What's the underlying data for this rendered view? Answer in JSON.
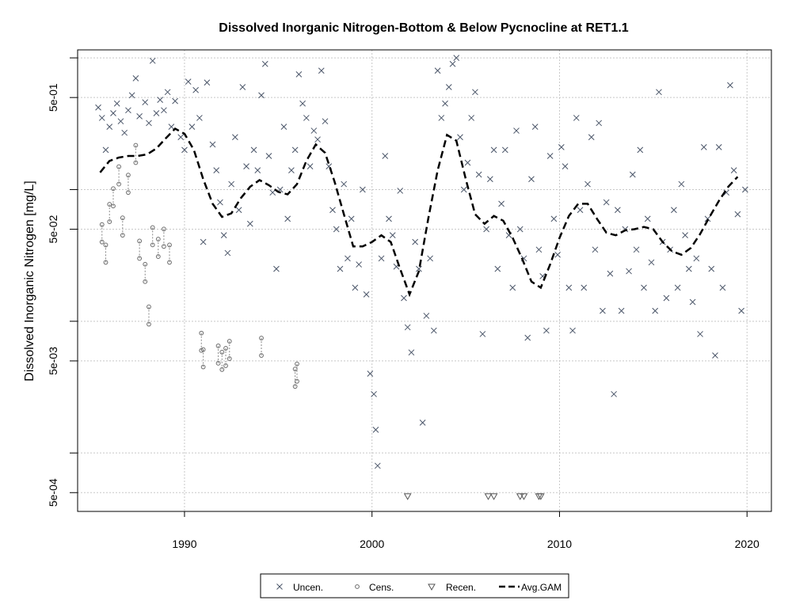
{
  "chart_data": {
    "type": "scatter",
    "title": "Dissolved Inorganic Nitrogen-Bottom & Below Pycnocline at RET1.1",
    "xlabel": "",
    "ylabel": "Dissolved Inorganic Nitrogen [mg/L]",
    "y_scale": "log",
    "xlim": [
      1984.3,
      2021.3
    ],
    "ylim": [
      0.00036,
      1.15
    ],
    "grid": true,
    "x_ticks": [
      1990,
      2000,
      2010,
      2020
    ],
    "x_tick_labels": [
      "1990",
      "2000",
      "2010",
      "2020"
    ],
    "y_ticks": [
      0.0005,
      0.005,
      0.05,
      0.5
    ],
    "y_tick_labels": [
      "5e-04",
      "5e-03",
      "5e-02",
      "5e-01"
    ],
    "y_gridlines": [
      0.001,
      0.01,
      0.1,
      1
    ],
    "legend": {
      "position": "bottom",
      "entries": [
        {
          "label": "Uncen.",
          "marker": "x-icon"
        },
        {
          "label": "Cens.",
          "marker": "circle-icon"
        },
        {
          "label": "Recen.",
          "marker": "triangle-down-icon"
        },
        {
          "label": "Avg.GAM",
          "marker": "dashed-line-icon"
        }
      ]
    },
    "colors": {
      "points": "#4a5568",
      "gam": "#000000",
      "grid": "#c8c8c8"
    },
    "series": [
      {
        "name": "Uncen.",
        "marker": "x",
        "points": [
          [
            1985.4,
            0.42
          ],
          [
            1985.6,
            0.35
          ],
          [
            1985.8,
            0.2
          ],
          [
            1986.0,
            0.3
          ],
          [
            1986.2,
            0.38
          ],
          [
            1986.4,
            0.45
          ],
          [
            1986.6,
            0.33
          ],
          [
            1986.8,
            0.27
          ],
          [
            1987.0,
            0.4
          ],
          [
            1987.2,
            0.52
          ],
          [
            1987.4,
            0.7
          ],
          [
            1987.6,
            0.36
          ],
          [
            1987.9,
            0.46
          ],
          [
            1988.1,
            0.32
          ],
          [
            1988.3,
            0.95
          ],
          [
            1988.5,
            0.38
          ],
          [
            1988.7,
            0.48
          ],
          [
            1988.9,
            0.4
          ],
          [
            1989.1,
            0.55
          ],
          [
            1989.3,
            0.3
          ],
          [
            1989.5,
            0.47
          ],
          [
            1989.8,
            0.25
          ],
          [
            1990.0,
            0.2
          ],
          [
            1990.2,
            0.66
          ],
          [
            1990.4,
            0.3
          ],
          [
            1990.6,
            0.57
          ],
          [
            1990.8,
            0.35
          ],
          [
            1991.0,
            0.04
          ],
          [
            1991.2,
            0.65
          ],
          [
            1991.5,
            0.22
          ],
          [
            1991.7,
            0.14
          ],
          [
            1991.9,
            0.08
          ],
          [
            1992.1,
            0.045
          ],
          [
            1992.3,
            0.033
          ],
          [
            1992.5,
            0.11
          ],
          [
            1992.7,
            0.25
          ],
          [
            1992.9,
            0.07
          ],
          [
            1993.1,
            0.6
          ],
          [
            1993.3,
            0.15
          ],
          [
            1993.5,
            0.055
          ],
          [
            1993.7,
            0.2
          ],
          [
            1993.9,
            0.14
          ],
          [
            1994.1,
            0.52
          ],
          [
            1994.3,
            0.9
          ],
          [
            1994.5,
            0.18
          ],
          [
            1994.7,
            0.095
          ],
          [
            1994.9,
            0.025
          ],
          [
            1995.1,
            0.1
          ],
          [
            1995.3,
            0.3
          ],
          [
            1995.5,
            0.06
          ],
          [
            1995.7,
            0.14
          ],
          [
            1995.9,
            0.2
          ],
          [
            1996.1,
            0.75
          ],
          [
            1996.3,
            0.45
          ],
          [
            1996.5,
            0.35
          ],
          [
            1996.7,
            0.15
          ],
          [
            1996.9,
            0.28
          ],
          [
            1997.1,
            0.24
          ],
          [
            1997.3,
            0.8
          ],
          [
            1997.5,
            0.33
          ],
          [
            1997.7,
            0.15
          ],
          [
            1997.9,
            0.07
          ],
          [
            1998.1,
            0.05
          ],
          [
            1998.3,
            0.025
          ],
          [
            1998.5,
            0.11
          ],
          [
            1998.7,
            0.03
          ],
          [
            1998.9,
            0.06
          ],
          [
            1999.1,
            0.018
          ],
          [
            1999.3,
            0.027
          ],
          [
            1999.5,
            0.1
          ],
          [
            1999.7,
            0.016
          ],
          [
            1999.9,
            0.004
          ],
          [
            2000.1,
            0.0028
          ],
          [
            2000.2,
            0.0015
          ],
          [
            2000.3,
            0.0008
          ],
          [
            2000.5,
            0.03
          ],
          [
            2000.7,
            0.18
          ],
          [
            2000.9,
            0.06
          ],
          [
            2001.1,
            0.045
          ],
          [
            2001.3,
            0.026
          ],
          [
            2001.5,
            0.098
          ],
          [
            2001.7,
            0.015
          ],
          [
            2001.9,
            0.009
          ],
          [
            2002.1,
            0.0058
          ],
          [
            2002.3,
            0.04
          ],
          [
            2002.5,
            0.025
          ],
          [
            2002.7,
            0.0017
          ],
          [
            2002.9,
            0.011
          ],
          [
            2003.1,
            0.03
          ],
          [
            2003.3,
            0.0085
          ],
          [
            2003.5,
            0.8
          ],
          [
            2003.7,
            0.35
          ],
          [
            2003.9,
            0.45
          ],
          [
            2004.1,
            0.6
          ],
          [
            2004.3,
            0.9
          ],
          [
            2004.5,
            1.0
          ],
          [
            2004.7,
            0.25
          ],
          [
            2004.9,
            0.1
          ],
          [
            2005.1,
            0.16
          ],
          [
            2005.3,
            0.35
          ],
          [
            2005.5,
            0.55
          ],
          [
            2005.7,
            0.13
          ],
          [
            2005.9,
            0.008
          ],
          [
            2006.1,
            0.05
          ],
          [
            2006.3,
            0.12
          ],
          [
            2006.5,
            0.2
          ],
          [
            2006.7,
            0.025
          ],
          [
            2006.9,
            0.078
          ],
          [
            2007.1,
            0.2
          ],
          [
            2007.3,
            0.045
          ],
          [
            2007.5,
            0.018
          ],
          [
            2007.7,
            0.28
          ],
          [
            2007.9,
            0.05
          ],
          [
            2008.1,
            0.03
          ],
          [
            2008.3,
            0.0075
          ],
          [
            2008.5,
            0.12
          ],
          [
            2008.7,
            0.3
          ],
          [
            2008.9,
            0.035
          ],
          [
            2009.1,
            0.022
          ],
          [
            2009.3,
            0.0085
          ],
          [
            2009.5,
            0.18
          ],
          [
            2009.7,
            0.06
          ],
          [
            2009.9,
            0.032
          ],
          [
            2010.1,
            0.21
          ],
          [
            2010.3,
            0.15
          ],
          [
            2010.5,
            0.018
          ],
          [
            2010.7,
            0.0085
          ],
          [
            2010.9,
            0.35
          ],
          [
            2011.1,
            0.07
          ],
          [
            2011.3,
            0.018
          ],
          [
            2011.5,
            0.11
          ],
          [
            2011.7,
            0.25
          ],
          [
            2011.9,
            0.035
          ],
          [
            2012.1,
            0.32
          ],
          [
            2012.3,
            0.012
          ],
          [
            2012.5,
            0.08
          ],
          [
            2012.7,
            0.023
          ],
          [
            2012.9,
            0.0028
          ],
          [
            2013.1,
            0.07
          ],
          [
            2013.3,
            0.012
          ],
          [
            2013.5,
            0.05
          ],
          [
            2013.7,
            0.024
          ],
          [
            2013.9,
            0.13
          ],
          [
            2014.1,
            0.035
          ],
          [
            2014.3,
            0.2
          ],
          [
            2014.5,
            0.018
          ],
          [
            2014.7,
            0.06
          ],
          [
            2014.9,
            0.028
          ],
          [
            2015.1,
            0.012
          ],
          [
            2015.3,
            0.55
          ],
          [
            2015.5,
            0.04
          ],
          [
            2015.7,
            0.015
          ],
          [
            2015.9,
            0.035
          ],
          [
            2016.1,
            0.07
          ],
          [
            2016.3,
            0.018
          ],
          [
            2016.5,
            0.11
          ],
          [
            2016.7,
            0.045
          ],
          [
            2016.9,
            0.025
          ],
          [
            2017.1,
            0.014
          ],
          [
            2017.3,
            0.03
          ],
          [
            2017.5,
            0.008
          ],
          [
            2017.7,
            0.21
          ],
          [
            2017.9,
            0.06
          ],
          [
            2018.1,
            0.025
          ],
          [
            2018.3,
            0.0055
          ],
          [
            2018.5,
            0.21
          ],
          [
            2018.7,
            0.018
          ],
          [
            2018.9,
            0.095
          ],
          [
            2019.1,
            0.62
          ],
          [
            2019.3,
            0.14
          ],
          [
            2019.5,
            0.065
          ],
          [
            2019.7,
            0.012
          ],
          [
            2019.9,
            0.1
          ]
        ]
      },
      {
        "name": "Cens.",
        "marker": "circle",
        "points": [
          [
            1985.6,
            0.04
          ],
          [
            1985.8,
            0.028
          ],
          [
            1986.0,
            0.057
          ],
          [
            1986.2,
            0.075
          ],
          [
            1986.5,
            0.11
          ],
          [
            1986.7,
            0.045
          ],
          [
            1987.0,
            0.095
          ],
          [
            1987.4,
            0.16
          ],
          [
            1987.6,
            0.03
          ],
          [
            1987.9,
            0.02
          ],
          [
            1988.1,
            0.0095
          ],
          [
            1988.3,
            0.038
          ],
          [
            1988.6,
            0.031
          ],
          [
            1988.9,
            0.037
          ],
          [
            1989.2,
            0.028
          ],
          [
            1990.9,
            0.006
          ],
          [
            1991.0,
            0.0045
          ],
          [
            1991.8,
            0.0048
          ],
          [
            1992.0,
            0.0043
          ],
          [
            1992.2,
            0.0046
          ],
          [
            1992.4,
            0.0052
          ],
          [
            1994.1,
            0.0055
          ],
          [
            1995.9,
            0.0032
          ],
          [
            1996.0,
            0.0035
          ]
        ]
      },
      {
        "name": "Recen.",
        "marker": "triangle-down",
        "points": [
          [
            2001.9,
            0.00047
          ],
          [
            2006.2,
            0.00047
          ],
          [
            2006.5,
            0.00047
          ],
          [
            2007.9,
            0.00047
          ],
          [
            2008.1,
            0.00047
          ],
          [
            2008.9,
            0.00047
          ],
          [
            2009.0,
            0.00047
          ]
        ]
      },
      {
        "name": "Avg.GAM",
        "line_style": "dashed",
        "points": [
          [
            1985.5,
            0.135
          ],
          [
            1986.0,
            0.165
          ],
          [
            1986.5,
            0.175
          ],
          [
            1987.0,
            0.18
          ],
          [
            1987.5,
            0.18
          ],
          [
            1988.0,
            0.185
          ],
          [
            1988.5,
            0.205
          ],
          [
            1989.0,
            0.245
          ],
          [
            1989.5,
            0.29
          ],
          [
            1990.0,
            0.265
          ],
          [
            1990.5,
            0.2
          ],
          [
            1991.0,
            0.12
          ],
          [
            1991.5,
            0.078
          ],
          [
            1992.0,
            0.062
          ],
          [
            1992.5,
            0.066
          ],
          [
            1993.0,
            0.086
          ],
          [
            1993.5,
            0.105
          ],
          [
            1994.0,
            0.118
          ],
          [
            1994.5,
            0.108
          ],
          [
            1995.0,
            0.096
          ],
          [
            1995.5,
            0.092
          ],
          [
            1996.0,
            0.11
          ],
          [
            1996.5,
            0.165
          ],
          [
            1997.0,
            0.22
          ],
          [
            1997.5,
            0.19
          ],
          [
            1998.0,
            0.115
          ],
          [
            1998.5,
            0.065
          ],
          [
            1999.0,
            0.037
          ],
          [
            1999.5,
            0.037
          ],
          [
            2000.0,
            0.04
          ],
          [
            2000.5,
            0.045
          ],
          [
            2001.0,
            0.04
          ],
          [
            2001.5,
            0.025
          ],
          [
            2002.0,
            0.016
          ],
          [
            2002.5,
            0.024
          ],
          [
            2003.0,
            0.06
          ],
          [
            2003.5,
            0.14
          ],
          [
            2004.0,
            0.26
          ],
          [
            2004.5,
            0.235
          ],
          [
            2005.0,
            0.12
          ],
          [
            2005.5,
            0.065
          ],
          [
            2006.0,
            0.055
          ],
          [
            2006.5,
            0.063
          ],
          [
            2007.0,
            0.058
          ],
          [
            2007.5,
            0.043
          ],
          [
            2008.0,
            0.03
          ],
          [
            2008.5,
            0.02
          ],
          [
            2009.0,
            0.018
          ],
          [
            2009.5,
            0.027
          ],
          [
            2010.0,
            0.043
          ],
          [
            2010.5,
            0.063
          ],
          [
            2011.0,
            0.078
          ],
          [
            2011.5,
            0.078
          ],
          [
            2012.0,
            0.06
          ],
          [
            2012.5,
            0.047
          ],
          [
            2013.0,
            0.045
          ],
          [
            2013.5,
            0.049
          ],
          [
            2014.0,
            0.05
          ],
          [
            2014.5,
            0.052
          ],
          [
            2015.0,
            0.05
          ],
          [
            2015.5,
            0.04
          ],
          [
            2016.0,
            0.034
          ],
          [
            2016.5,
            0.032
          ],
          [
            2017.0,
            0.036
          ],
          [
            2017.5,
            0.046
          ],
          [
            2018.0,
            0.062
          ],
          [
            2018.5,
            0.082
          ],
          [
            2019.0,
            0.105
          ],
          [
            2019.5,
            0.125
          ]
        ]
      }
    ]
  }
}
